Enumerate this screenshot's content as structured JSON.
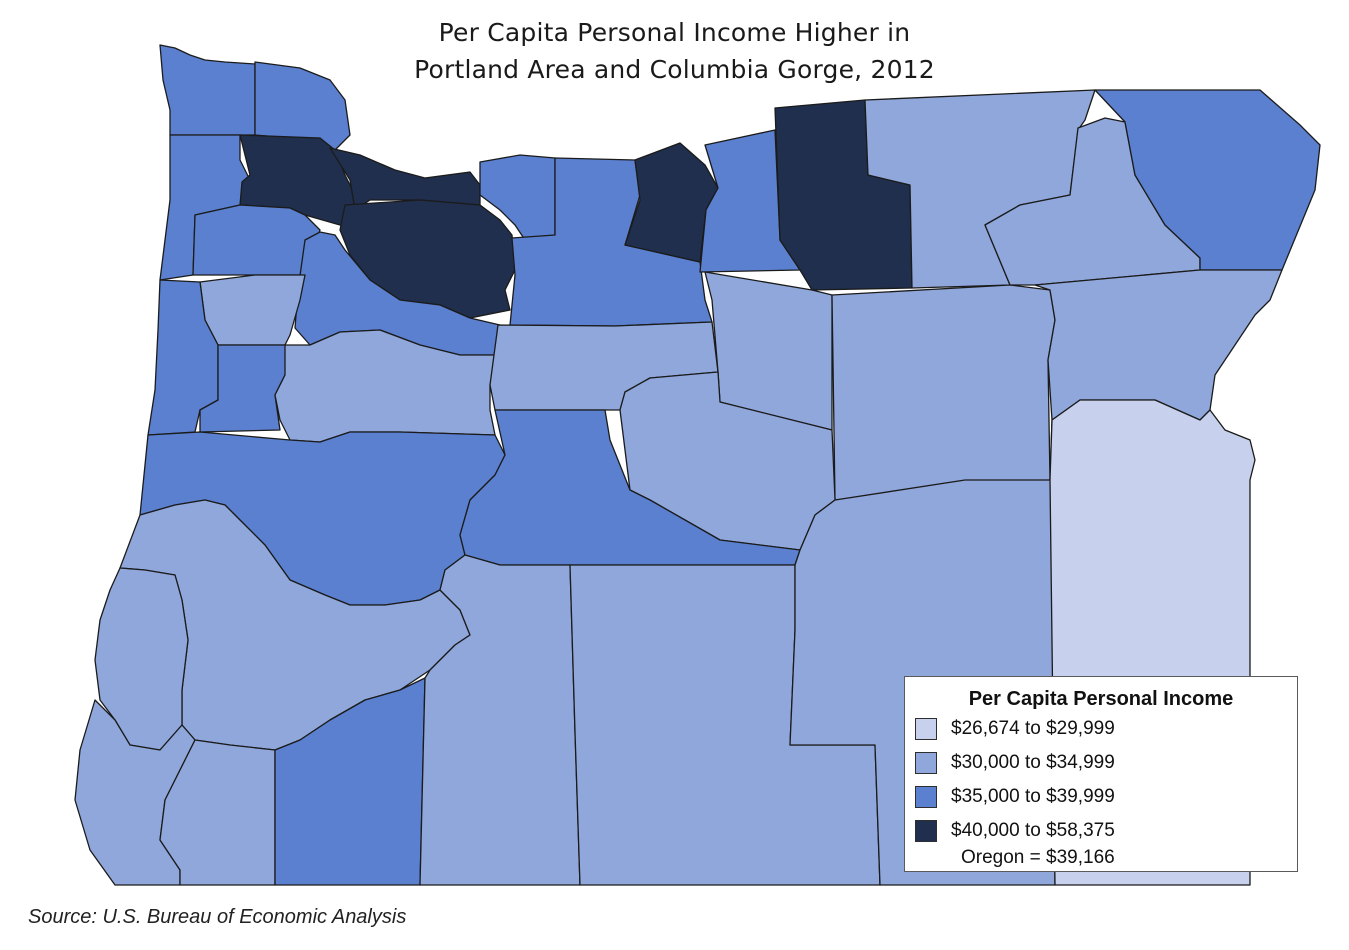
{
  "title": {
    "line1": "Per Capita Personal Income Higher in",
    "line2": "Portland Area and Columbia Gorge, 2012"
  },
  "colors": {
    "bin1": "#c7d0ec",
    "bin2": "#8fa7db",
    "bin3": "#5a80cf",
    "bin4": "#1f2f4d",
    "border": "#1b1b1b"
  },
  "legend": {
    "title": "Per Capita Personal Income",
    "items": [
      {
        "label": "$26,674 to $29,999",
        "color": "#c7d0ec"
      },
      {
        "label": "$30,000 to $34,999",
        "color": "#8fa7db"
      },
      {
        "label": "$35,000 to $39,999",
        "color": "#5a80cf"
      },
      {
        "label": "$40,000 to $58,375",
        "color": "#1f2f4d"
      }
    ],
    "note": "Oregon = $39,166"
  },
  "source": "Source: U.S. Bureau of Economic Analysis"
}
